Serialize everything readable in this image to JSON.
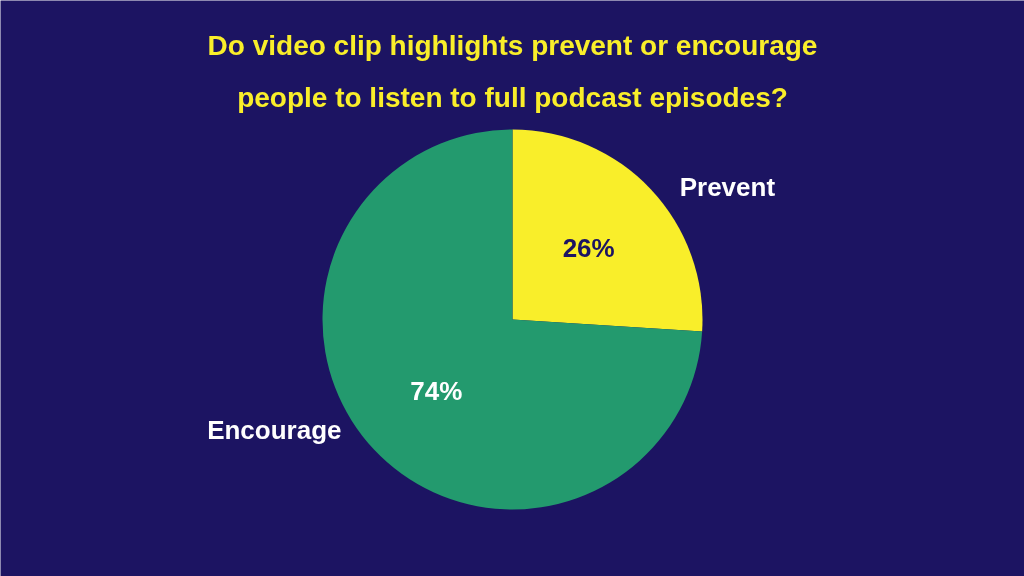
{
  "chart_data": {
    "type": "pie",
    "title": "Do video clip highlights prevent or encourage people to listen to full podcast episodes?",
    "categories": [
      "Prevent",
      "Encourage"
    ],
    "values": [
      26,
      74
    ],
    "colors": [
      "#f9ee2a",
      "#239a6e"
    ],
    "value_labels": [
      "26%",
      "74%"
    ]
  }
}
